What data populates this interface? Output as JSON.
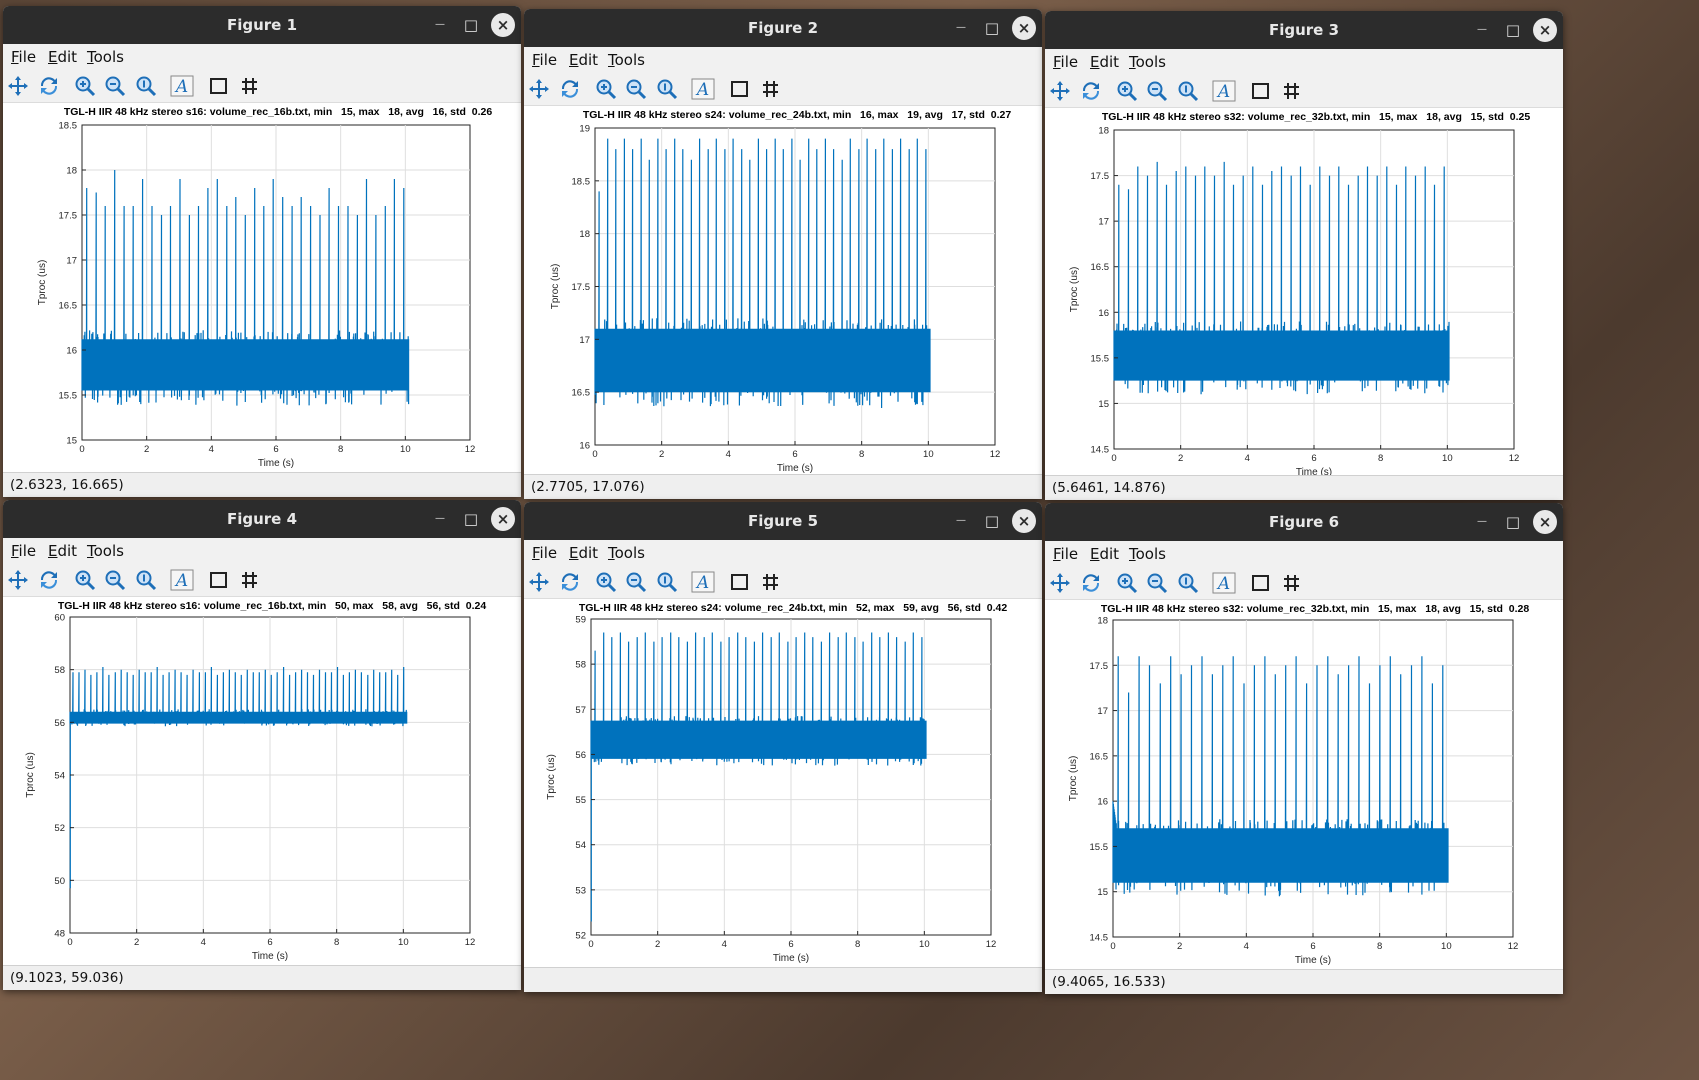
{
  "figures": [
    {
      "window_title": "Figure 1",
      "menu": {
        "file": "File",
        "edit": "Edit",
        "tools": "Tools"
      },
      "chart_data": {
        "type": "line",
        "title": "TGL-H IIR 48 kHz stereo s16: volume_rec_16b.txt, min   15, max   18, avg   16, std  0.26",
        "xlabel": "Time (s)",
        "ylabel": "Tproc (us)",
        "xlim": [
          0,
          12
        ],
        "ylim": [
          15,
          18.5
        ],
        "xticks": [
          0,
          2,
          4,
          6,
          8,
          10,
          12
        ],
        "yticks": [
          15,
          15.5,
          16,
          16.5,
          17,
          17.5,
          18,
          18.5
        ],
        "xtick_labels": [
          "0",
          "2",
          "4",
          "6",
          "8",
          "10",
          "12"
        ],
        "ytick_labels": [
          "15",
          "15.5",
          "16",
          "16.5",
          "17",
          "17.5",
          "18",
          "18.5"
        ],
        "grid": true,
        "series": [
          {
            "x_end": 10.1,
            "band_low": 15.55,
            "band_high": 16.12,
            "noise_low": 15.38,
            "noise_high": 16.22,
            "spike_peaks": [
              17.8,
              17.75,
              17.6,
              18.0,
              17.6,
              17.6,
              17.9,
              17.6,
              17.5,
              17.6,
              17.9,
              17.5,
              17.6,
              17.8,
              17.9,
              17.6,
              17.7,
              17.5,
              17.8,
              17.6,
              17.9,
              17.7,
              17.6,
              17.7,
              17.6,
              17.5,
              17.8,
              17.6,
              17.6,
              17.5,
              17.9,
              17.5,
              17.6,
              17.9,
              17.8
            ]
          }
        ]
      },
      "status": "(2.6323, 16.665)"
    },
    {
      "window_title": "Figure 2",
      "menu": {
        "file": "File",
        "edit": "Edit",
        "tools": "Tools"
      },
      "chart_data": {
        "type": "line",
        "title": "TGL-H IIR 48 kHz stereo s24: volume_rec_24b.txt, min   16, max   19, avg   17, std  0.27",
        "xlabel": "Time (s)",
        "ylabel": "Tproc (us)",
        "xlim": [
          0,
          12
        ],
        "ylim": [
          16,
          19
        ],
        "xticks": [
          0,
          2,
          4,
          6,
          8,
          10,
          12
        ],
        "yticks": [
          16,
          16.5,
          17,
          17.5,
          18,
          18.5,
          19
        ],
        "xtick_labels": [
          "0",
          "2",
          "4",
          "6",
          "8",
          "10",
          "12"
        ],
        "ytick_labels": [
          "16",
          "16.5",
          "17",
          "17.5",
          "18",
          "18.5",
          "19"
        ],
        "grid": true,
        "series": [
          {
            "x_end": 10.05,
            "band_low": 16.5,
            "band_high": 17.1,
            "noise_low": 16.35,
            "noise_high": 17.2,
            "spike_peaks": [
              18.4,
              18.9,
              18.8,
              18.9,
              18.8,
              18.9,
              18.7,
              18.9,
              18.8,
              18.9,
              18.8,
              18.7,
              18.9,
              18.8,
              18.9,
              18.8,
              18.9,
              18.8,
              18.7,
              18.9,
              18.8,
              18.9,
              18.8,
              18.9,
              18.7,
              18.9,
              18.8,
              18.9,
              18.8,
              18.7,
              18.9,
              18.8,
              18.9,
              18.8,
              18.9,
              18.8,
              18.9,
              18.8,
              18.9,
              18.8
            ]
          }
        ]
      },
      "status": "(2.7705, 17.076)"
    },
    {
      "window_title": "Figure 3",
      "menu": {
        "file": "File",
        "edit": "Edit",
        "tools": "Tools"
      },
      "chart_data": {
        "type": "line",
        "title": "TGL-H IIR 48 kHz stereo s32: volume_rec_32b.txt, min   15, max   18, avg   15, std  0.25",
        "xlabel": "Time (s)",
        "ylabel": "Tproc (us)",
        "xlim": [
          0,
          12
        ],
        "ylim": [
          14.5,
          18
        ],
        "xticks": [
          0,
          2,
          4,
          6,
          8,
          10,
          12
        ],
        "yticks": [
          14.5,
          15,
          15.5,
          16,
          16.5,
          17,
          17.5,
          18
        ],
        "xtick_labels": [
          "0",
          "2",
          "4",
          "6",
          "8",
          "10",
          "12"
        ],
        "ytick_labels": [
          "14.5",
          "15",
          "15.5",
          "16",
          "16.5",
          "17",
          "17.5",
          "18"
        ],
        "grid": true,
        "series": [
          {
            "x_end": 10.05,
            "band_low": 15.25,
            "band_high": 15.8,
            "noise_low": 15.1,
            "noise_high": 15.9,
            "spike_peaks": [
              17.4,
              17.35,
              17.6,
              17.5,
              17.65,
              17.4,
              17.55,
              17.6,
              17.5,
              17.6,
              17.5,
              17.65,
              17.4,
              17.5,
              17.6,
              17.4,
              17.55,
              17.6,
              17.5,
              17.6,
              17.4,
              17.6,
              17.5,
              17.6,
              17.4,
              17.5,
              17.6,
              17.5,
              17.6,
              17.4,
              17.6,
              17.5,
              17.6,
              17.4,
              17.6
            ]
          }
        ]
      },
      "status": "(5.6461, 14.876)"
    },
    {
      "window_title": "Figure 4",
      "menu": {
        "file": "File",
        "edit": "Edit",
        "tools": "Tools"
      },
      "chart_data": {
        "type": "line",
        "title": "TGL-H IIR 48 kHz stereo s16: volume_rec_16b.txt, min   50, max   58, avg   56, std  0.24",
        "xlabel": "Time (s)",
        "ylabel": "Tproc (us)",
        "xlim": [
          0,
          12
        ],
        "ylim": [
          48,
          60
        ],
        "xticks": [
          0,
          2,
          4,
          6,
          8,
          10,
          12
        ],
        "yticks": [
          48,
          50,
          52,
          54,
          56,
          58,
          60
        ],
        "xtick_labels": [
          "0",
          "2",
          "4",
          "6",
          "8",
          "10",
          "12"
        ],
        "ytick_labels": [
          "48",
          "50",
          "52",
          "54",
          "56",
          "58",
          "60"
        ],
        "grid": true,
        "series": [
          {
            "x_end": 10.1,
            "band_low": 55.95,
            "band_high": 56.4,
            "noise_low": 55.85,
            "noise_high": 56.5,
            "spike_peaks": [
              57.9,
              57.9,
              58.0,
              57.8,
              57.9,
              58.1,
              57.8,
              57.9,
              58.0,
              57.9,
              57.8,
              58.0,
              57.9,
              57.9,
              58.1,
              57.8,
              57.9,
              58.0,
              57.9,
              57.8,
              58.0,
              57.9,
              57.9,
              58.1,
              57.8,
              57.9,
              58.0,
              57.9,
              57.8,
              58.0,
              57.9,
              57.9,
              58.0,
              57.8,
              57.9,
              58.1,
              57.8,
              57.9,
              58.0,
              57.9,
              57.8,
              58.0,
              57.9,
              57.9,
              58.1,
              57.8,
              57.9,
              58.0,
              57.9,
              57.8,
              58.0,
              57.9,
              57.9,
              58.0,
              57.8,
              58.1
            ],
            "initial_dip": 49.7
          }
        ]
      },
      "status": "(9.1023, 59.036)"
    },
    {
      "window_title": "Figure 5",
      "menu": {
        "file": "File",
        "edit": "Edit",
        "tools": "Tools"
      },
      "chart_data": {
        "type": "line",
        "title": "TGL-H IIR 48 kHz stereo s24: volume_rec_24b.txt, min   52, max   59, avg   56, std  0.42",
        "xlabel": "Time (s)",
        "ylabel": "Tproc (us)",
        "xlim": [
          0,
          12
        ],
        "ylim": [
          52,
          59
        ],
        "xticks": [
          0,
          2,
          4,
          6,
          8,
          10,
          12
        ],
        "yticks": [
          52,
          53,
          54,
          55,
          56,
          57,
          58,
          59
        ],
        "xtick_labels": [
          "0",
          "2",
          "4",
          "6",
          "8",
          "10",
          "12"
        ],
        "ytick_labels": [
          "52",
          "53",
          "54",
          "55",
          "56",
          "57",
          "58",
          "59"
        ],
        "grid": true,
        "series": [
          {
            "x_end": 10.05,
            "band_low": 55.9,
            "band_high": 56.75,
            "noise_low": 55.75,
            "noise_high": 56.85,
            "spike_peaks": [
              58.3,
              58.7,
              58.6,
              58.7,
              58.5,
              58.6,
              58.7,
              58.5,
              58.6,
              58.7,
              58.6,
              58.5,
              58.7,
              58.6,
              58.7,
              58.5,
              58.6,
              58.7,
              58.6,
              58.5,
              58.7,
              58.6,
              58.7,
              58.5,
              58.6,
              58.7,
              58.6,
              58.5,
              58.7,
              58.6,
              58.7,
              58.6,
              58.5,
              58.7,
              58.6,
              58.7,
              58.6,
              58.5,
              58.7,
              58.6
            ],
            "initial_dip": 52.3
          }
        ]
      },
      "status": ""
    },
    {
      "window_title": "Figure 6",
      "menu": {
        "file": "File",
        "edit": "Edit",
        "tools": "Tools"
      },
      "chart_data": {
        "type": "line",
        "title": "TGL-H IIR 48 kHz stereo s32: volume_rec_32b.txt, min   15, max   18, avg   15, std  0.28",
        "xlabel": "Time (s)",
        "ylabel": "Tproc (us)",
        "xlim": [
          0,
          12
        ],
        "ylim": [
          14.5,
          18
        ],
        "xticks": [
          0,
          2,
          4,
          6,
          8,
          10,
          12
        ],
        "yticks": [
          14.5,
          15,
          15.5,
          16,
          16.5,
          17,
          17.5,
          18
        ],
        "xtick_labels": [
          "0",
          "2",
          "4",
          "6",
          "8",
          "10",
          "12"
        ],
        "ytick_labels": [
          "14.5",
          "15",
          "15.5",
          "16",
          "16.5",
          "17",
          "17.5",
          "18"
        ],
        "grid": true,
        "series": [
          {
            "x_end": 10.05,
            "band_low": 15.1,
            "band_high": 15.7,
            "noise_low": 14.95,
            "noise_high": 15.8,
            "spike_peaks": [
              17.6,
              17.2,
              17.6,
              17.5,
              17.3,
              17.6,
              17.4,
              17.5,
              17.6,
              17.4,
              17.5,
              17.6,
              17.3,
              17.5,
              17.6,
              17.4,
              17.5,
              17.6,
              17.3,
              17.5,
              17.6,
              17.4,
              17.5,
              17.6,
              17.3,
              17.5,
              17.6,
              17.4,
              17.5,
              17.6,
              17.3,
              17.5
            ],
            "initial_bump": 16.0
          }
        ]
      },
      "status": "(9.4065, 16.533)"
    }
  ],
  "colors": {
    "line": "#0072bd",
    "titlebar": "#2c2c2c",
    "toolbar_icon": "#1e6fb8"
  },
  "toolbar_icons": [
    "pan-icon",
    "rotate-icon",
    "zoom-in-icon",
    "zoom-out-icon",
    "zoom-reset-icon",
    "text-icon",
    "box-icon",
    "grid-icon"
  ]
}
